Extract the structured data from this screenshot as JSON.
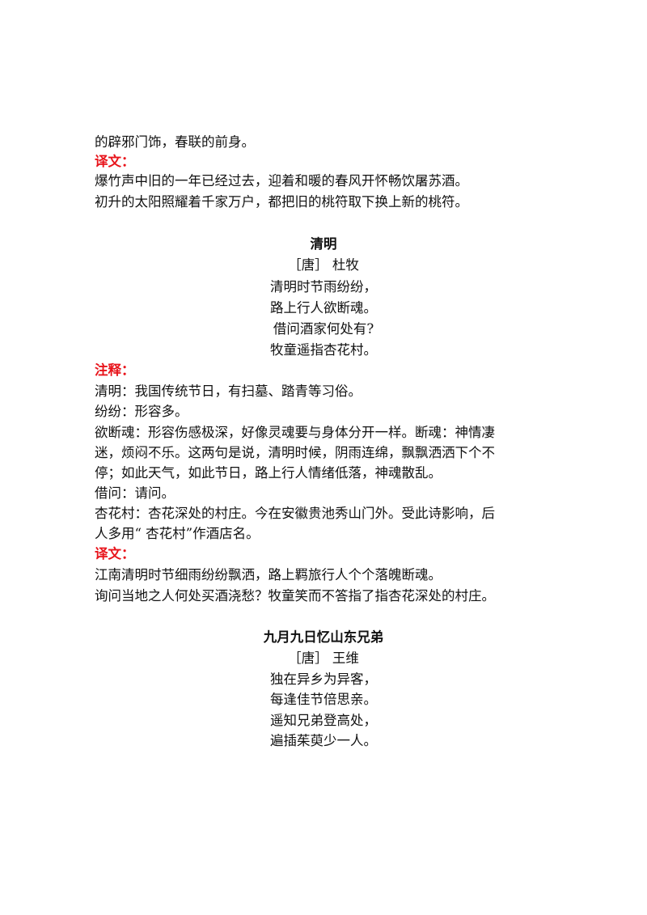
{
  "top": {
    "continuation": "的辟邪门饰，春联的前身。",
    "translation_label": "译文：",
    "translation": [
      "爆竹声中旧的一年已经过去，迎着和暖的春风开怀畅饮屠苏酒。",
      "初升的太阳照耀着千家万户，都把旧的桃符取下换上新的桃符。"
    ]
  },
  "poem1": {
    "title": "清明",
    "author": "［唐］ 杜牧",
    "lines": [
      "清明时节雨纷纷，",
      "路上行人欲断魂。",
      "借问酒家何处有?",
      "牧童遥指杏花村。"
    ],
    "notes_label": "注释：",
    "notes": [
      "清明：我国传统节日，有扫墓、踏青等习俗。",
      "纷纷：形容多。",
      "欲断魂：形容伤感极深，好像灵魂要与身体分开一样。断魂：神情凄",
      "迷，烦闷不乐。这两句是说，清明时候，阴雨连绵，飘飘洒洒下个不",
      "停；如此天气，如此节日，路上行人情绪低落，神魂散乱。",
      "借问：请问。",
      "杏花村：杏花深处的村庄。今在安徽贵池秀山门外。受此诗影响，后",
      "人多用“ 杏花村”作酒店名。"
    ],
    "translation_label": "译文：",
    "translation": [
      "江南清明时节细雨纷纷飘洒，路上羁旅行人个个落魄断魂。",
      "询问当地之人何处买酒浇愁？牧童笑而不答指了指杏花深处的村庄。"
    ]
  },
  "poem2": {
    "title": "九月九日忆山东兄弟",
    "author": "［唐］ 王维",
    "lines": [
      "独在异乡为异客，",
      "每逢佳节倍思亲。",
      "遥知兄弟登高处，",
      "遍插茱萸少一人。"
    ]
  }
}
